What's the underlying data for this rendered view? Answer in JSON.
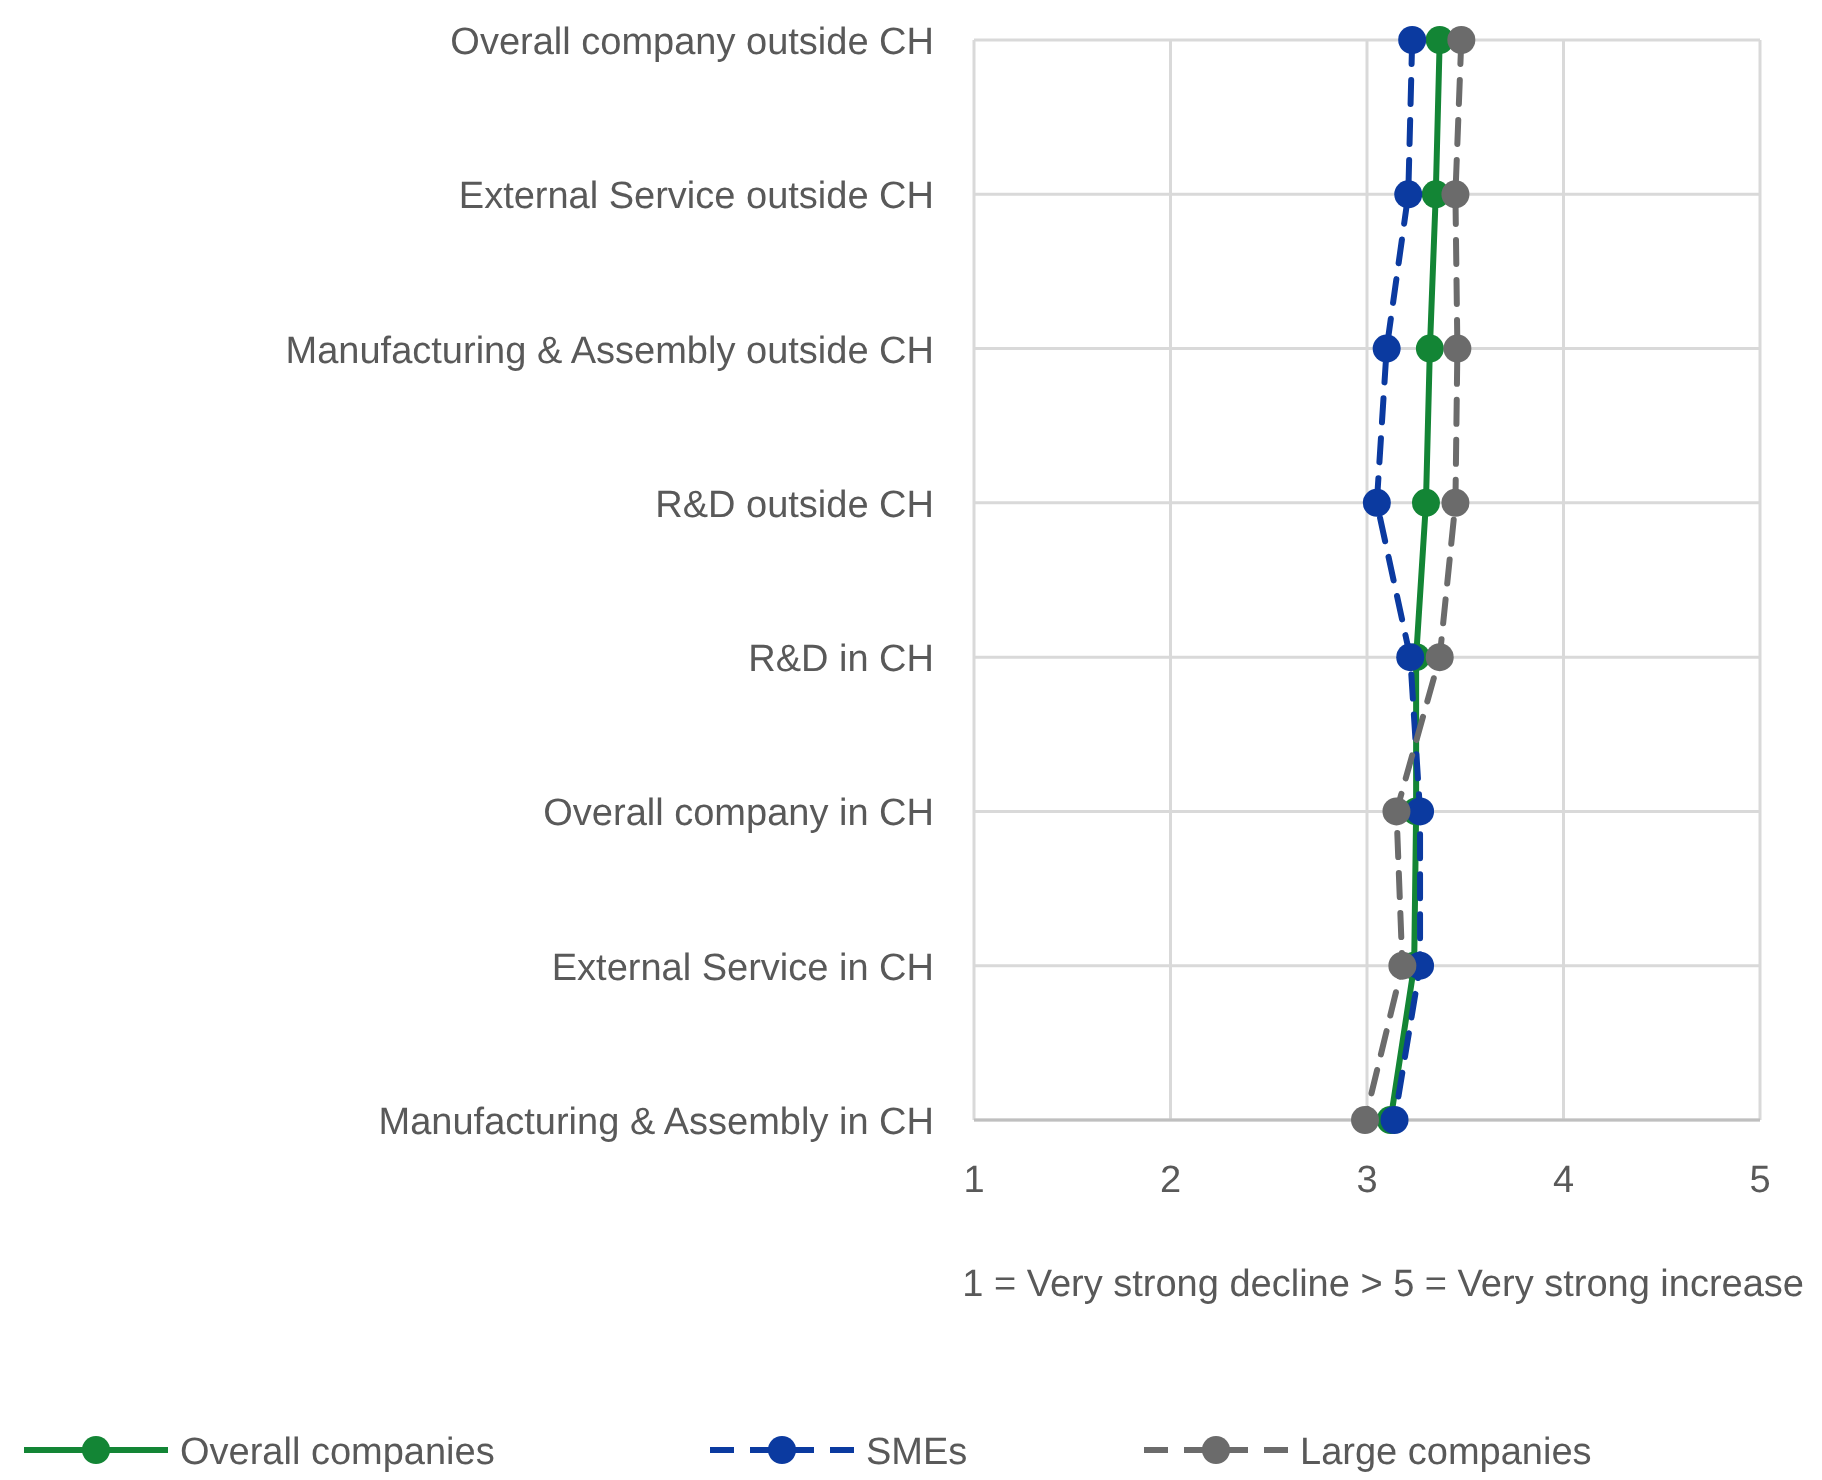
{
  "chart_data": {
    "type": "line",
    "orientation": "horizontal",
    "xlabel": "1 = Very strong decline > 5 = Very strong increase",
    "categories": [
      "Overall company outside CH",
      "External Service outside CH",
      "Manufacturing & Assembly outside CH",
      "R&D outside CH",
      "R&D in CH",
      "Overall company in CH",
      "External Service in CH",
      "Manufacturing & Assembly in CH"
    ],
    "series": [
      {
        "name": "Overall companies",
        "color": "#138535",
        "line_style": "solid",
        "values": [
          3.37,
          3.35,
          3.32,
          3.3,
          3.25,
          3.25,
          3.24,
          3.12
        ]
      },
      {
        "name": "SMEs",
        "color": "#0b3aa0",
        "line_style": "dashed",
        "values": [
          3.23,
          3.21,
          3.1,
          3.05,
          3.22,
          3.27,
          3.27,
          3.14
        ]
      },
      {
        "name": "Large companies",
        "color": "#6b6b6b",
        "line_style": "dashed",
        "values": [
          3.48,
          3.45,
          3.46,
          3.45,
          3.37,
          3.15,
          3.18,
          2.99
        ]
      }
    ],
    "xlim": [
      1,
      5
    ],
    "xticks": [
      1,
      2,
      3,
      4,
      5
    ],
    "grid": true,
    "legend": "bottom",
    "marker": "circle"
  }
}
